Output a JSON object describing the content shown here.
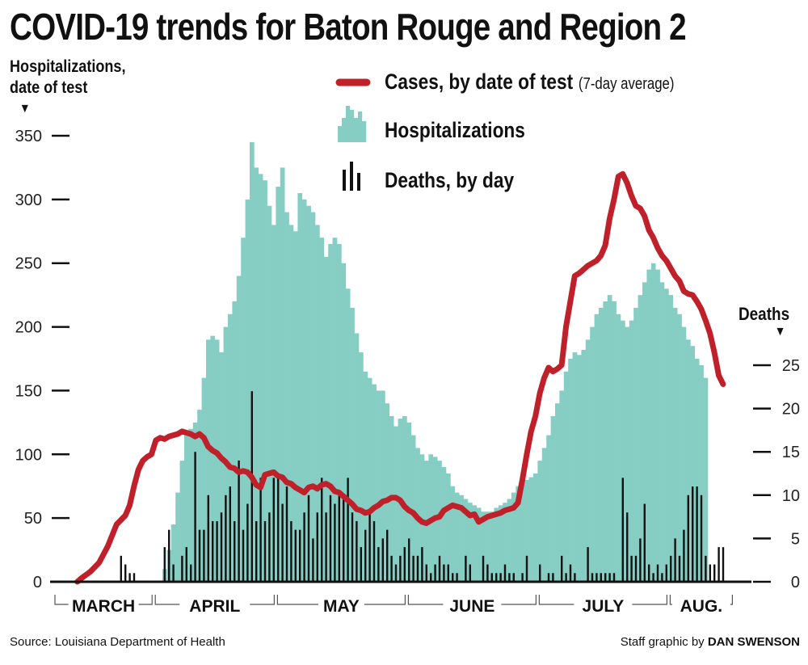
{
  "title": "COVID-19 trends for Baton Rouge and Region 2",
  "ylabel_left": "Hospitalizations, date of test",
  "ylabel_right": "Deaths",
  "legend": {
    "cases": "Cases, by date of test",
    "cases_note": "(7-day average)",
    "hosp": "Hospitalizations",
    "deaths": "Deaths, by day"
  },
  "source": "Source: Louisiana Department of Health",
  "credit_prefix": "Staff graphic by",
  "credit_name": "DAN SWENSON",
  "colors": {
    "hospitalizations": "#86cdc3",
    "cases": "#c0202a",
    "deaths": "#111111"
  },
  "chart_data": {
    "type": "bar",
    "x_unit": "days since first reported day (early March)",
    "months": [
      "MARCH",
      "APRIL",
      "MAY",
      "JUNE",
      "JULY",
      "AUG."
    ],
    "left_axis": {
      "label": "Hospitalizations, date of test",
      "ticks": [
        0,
        50,
        100,
        150,
        200,
        250,
        300,
        350
      ],
      "ylim": [
        0,
        350
      ]
    },
    "right_axis": {
      "label": "Deaths",
      "ticks": [
        0,
        5,
        10,
        15,
        20,
        25
      ],
      "ylim": [
        0,
        27
      ]
    },
    "series": [
      {
        "name": "Hospitalizations",
        "kind": "bar",
        "axis": "left",
        "values": [
          0,
          0,
          0,
          0,
          0,
          0,
          0,
          0,
          0,
          0,
          0,
          0,
          0,
          0,
          0,
          0,
          0,
          0,
          0,
          0,
          0,
          0,
          0,
          0,
          0,
          10,
          25,
          45,
          70,
          95,
          115,
          120,
          125,
          135,
          160,
          190,
          193,
          190,
          180,
          200,
          210,
          220,
          240,
          270,
          300,
          345,
          325,
          320,
          315,
          295,
          280,
          310,
          325,
          290,
          280,
          275,
          305,
          300,
          295,
          290,
          280,
          270,
          255,
          265,
          270,
          265,
          250,
          230,
          215,
          195,
          180,
          165,
          160,
          155,
          150,
          150,
          140,
          130,
          122,
          128,
          130,
          125,
          115,
          105,
          100,
          95,
          100,
          98,
          95,
          90,
          85,
          75,
          70,
          68,
          65,
          62,
          60,
          58,
          55,
          55,
          55,
          58,
          60,
          62,
          65,
          70,
          75,
          80,
          80,
          82,
          85,
          95,
          105,
          115,
          130,
          140,
          150,
          165,
          175,
          180,
          178,
          182,
          190,
          200,
          210,
          215,
          220,
          225,
          220,
          210,
          205,
          200,
          205,
          215,
          225,
          235,
          245,
          250,
          245,
          235,
          230,
          225,
          215,
          210,
          200,
          190,
          185,
          175,
          170,
          160
        ]
      },
      {
        "name": "Deaths, by day",
        "kind": "bar",
        "axis": "right",
        "values": [
          0,
          0,
          0,
          0,
          0,
          0,
          0,
          0,
          0,
          0,
          0,
          0,
          0,
          0,
          0,
          3,
          2,
          1,
          1,
          0,
          0,
          0,
          0,
          0,
          0,
          4,
          6,
          2,
          0,
          3,
          4,
          2,
          15,
          6,
          6,
          10,
          7,
          7,
          8,
          10,
          11,
          7,
          14,
          6,
          9,
          22,
          7,
          12,
          7,
          8,
          12,
          12,
          9,
          11,
          7,
          6,
          6,
          8,
          10,
          5,
          8,
          12,
          8,
          10,
          9,
          10,
          10,
          12,
          8,
          7,
          4,
          6,
          8,
          7,
          4,
          5,
          6,
          3,
          2,
          3,
          4,
          5,
          3,
          3,
          4,
          2,
          1,
          2,
          3,
          2,
          2,
          1,
          1,
          0,
          3,
          2,
          0,
          0,
          3,
          2,
          1,
          1,
          1,
          2,
          1,
          1,
          0,
          1,
          3,
          0,
          0,
          2,
          0,
          1,
          1,
          0,
          3,
          1,
          2,
          1,
          0,
          0,
          4,
          1,
          1,
          1,
          1,
          1,
          1,
          0,
          12,
          8,
          3,
          3,
          5,
          9,
          2,
          1,
          2,
          1,
          2,
          3,
          5,
          3,
          6,
          10,
          11,
          11,
          10,
          3,
          2,
          2,
          4,
          4
        ]
      },
      {
        "name": "Cases, by date of test",
        "kind": "line",
        "axis": "left",
        "values": [
          0,
          0,
          0,
          0,
          0,
          0,
          0,
          0,
          0,
          0,
          0,
          0,
          0,
          0,
          0,
          0,
          0,
          0,
          0,
          0,
          0,
          0,
          0,
          0,
          0,
          0,
          0,
          0,
          0,
          0,
          0,
          0,
          0,
          0,
          0,
          0,
          0,
          0,
          0,
          0,
          0,
          0,
          0,
          0,
          0,
          0,
          0,
          0,
          0,
          0,
          0,
          0,
          0,
          0,
          0,
          0,
          0,
          0,
          0,
          0,
          0,
          0,
          0,
          0,
          0,
          0,
          0,
          0,
          0,
          0,
          0,
          0,
          0,
          0,
          0,
          0,
          0,
          0,
          0,
          0,
          0,
          0,
          0,
          0,
          0,
          0,
          0,
          0,
          0,
          0,
          0,
          0,
          0,
          0,
          0,
          0,
          0,
          0,
          0,
          0,
          0,
          0,
          0,
          0,
          0,
          0,
          0,
          0,
          0,
          0,
          0,
          0,
          0,
          0,
          0,
          0,
          0,
          0,
          0,
          0,
          0,
          0,
          0,
          0,
          0,
          0,
          0,
          0,
          0,
          0,
          0,
          0,
          0,
          0,
          0,
          0,
          0,
          0,
          0,
          0,
          0,
          0,
          0,
          0,
          0,
          0,
          0,
          0,
          0,
          0,
          0,
          0,
          0,
          0
        ],
        "points": [
          [
            5,
            0
          ],
          [
            6,
            3
          ],
          [
            8,
            8
          ],
          [
            10,
            15
          ],
          [
            12,
            28
          ],
          [
            14,
            45
          ],
          [
            16,
            52
          ],
          [
            17,
            60
          ],
          [
            18,
            75
          ],
          [
            19,
            88
          ],
          [
            20,
            95
          ],
          [
            21,
            98
          ],
          [
            22,
            100
          ],
          [
            23,
            111
          ],
          [
            24,
            113
          ],
          [
            25,
            112
          ],
          [
            26,
            114
          ],
          [
            27,
            115
          ],
          [
            28,
            116
          ],
          [
            29,
            118
          ],
          [
            30,
            117
          ],
          [
            31,
            116
          ],
          [
            32,
            114
          ],
          [
            33,
            116
          ],
          [
            34,
            113
          ],
          [
            35,
            106
          ],
          [
            36,
            103
          ],
          [
            37,
            101
          ],
          [
            38,
            97
          ],
          [
            39,
            94
          ],
          [
            40,
            90
          ],
          [
            41,
            89
          ],
          [
            42,
            86
          ],
          [
            43,
            87
          ],
          [
            44,
            86
          ],
          [
            45,
            82
          ],
          [
            46,
            76
          ],
          [
            47,
            74
          ],
          [
            48,
            84
          ],
          [
            49,
            85
          ],
          [
            50,
            86
          ],
          [
            51,
            83
          ],
          [
            52,
            82
          ],
          [
            53,
            78
          ],
          [
            54,
            77
          ],
          [
            55,
            74
          ],
          [
            56,
            72
          ],
          [
            57,
            70
          ],
          [
            58,
            74
          ],
          [
            59,
            75
          ],
          [
            60,
            73
          ],
          [
            61,
            76
          ],
          [
            62,
            77
          ],
          [
            63,
            75
          ],
          [
            64,
            71
          ],
          [
            65,
            70
          ],
          [
            66,
            67
          ],
          [
            67,
            64
          ],
          [
            68,
            61
          ],
          [
            69,
            57
          ],
          [
            70,
            56
          ],
          [
            71,
            54
          ],
          [
            72,
            55
          ],
          [
            73,
            58
          ],
          [
            74,
            60
          ],
          [
            75,
            63
          ],
          [
            76,
            64
          ],
          [
            77,
            66
          ],
          [
            78,
            66
          ],
          [
            79,
            64
          ],
          [
            80,
            59
          ],
          [
            81,
            56
          ],
          [
            82,
            54
          ],
          [
            83,
            50
          ],
          [
            84,
            47
          ],
          [
            85,
            46
          ],
          [
            86,
            48
          ],
          [
            87,
            50
          ],
          [
            88,
            51
          ],
          [
            89,
            56
          ],
          [
            90,
            58
          ],
          [
            91,
            60
          ],
          [
            92,
            59
          ],
          [
            93,
            58
          ],
          [
            94,
            55
          ],
          [
            95,
            52
          ],
          [
            96,
            53
          ],
          [
            97,
            47
          ],
          [
            98,
            49
          ],
          [
            99,
            51
          ],
          [
            100,
            52
          ],
          [
            101,
            53
          ],
          [
            102,
            54
          ],
          [
            103,
            56
          ],
          [
            104,
            57
          ],
          [
            105,
            58
          ],
          [
            106,
            62
          ],
          [
            107,
            80
          ],
          [
            108,
            100
          ],
          [
            109,
            118
          ],
          [
            110,
            130
          ],
          [
            111,
            148
          ],
          [
            112,
            160
          ],
          [
            113,
            168
          ],
          [
            114,
            165
          ],
          [
            115,
            167
          ],
          [
            116,
            170
          ],
          [
            117,
            200
          ],
          [
            118,
            220
          ],
          [
            119,
            240
          ],
          [
            120,
            242
          ],
          [
            121,
            245
          ],
          [
            122,
            248
          ],
          [
            123,
            250
          ],
          [
            124,
            252
          ],
          [
            125,
            256
          ],
          [
            126,
            264
          ],
          [
            127,
            285
          ],
          [
            128,
            300
          ],
          [
            129,
            318
          ],
          [
            130,
            320
          ],
          [
            131,
            313
          ],
          [
            132,
            303
          ],
          [
            133,
            295
          ],
          [
            134,
            293
          ],
          [
            135,
            287
          ],
          [
            136,
            276
          ],
          [
            137,
            270
          ],
          [
            138,
            262
          ],
          [
            139,
            256
          ],
          [
            140,
            252
          ],
          [
            141,
            246
          ],
          [
            142,
            240
          ],
          [
            143,
            236
          ],
          [
            144,
            228
          ],
          [
            145,
            226
          ],
          [
            146,
            225
          ],
          [
            147,
            220
          ],
          [
            148,
            214
          ],
          [
            149,
            205
          ],
          [
            150,
            195
          ],
          [
            151,
            180
          ],
          [
            152,
            162
          ],
          [
            153,
            155
          ]
        ]
      }
    ]
  }
}
